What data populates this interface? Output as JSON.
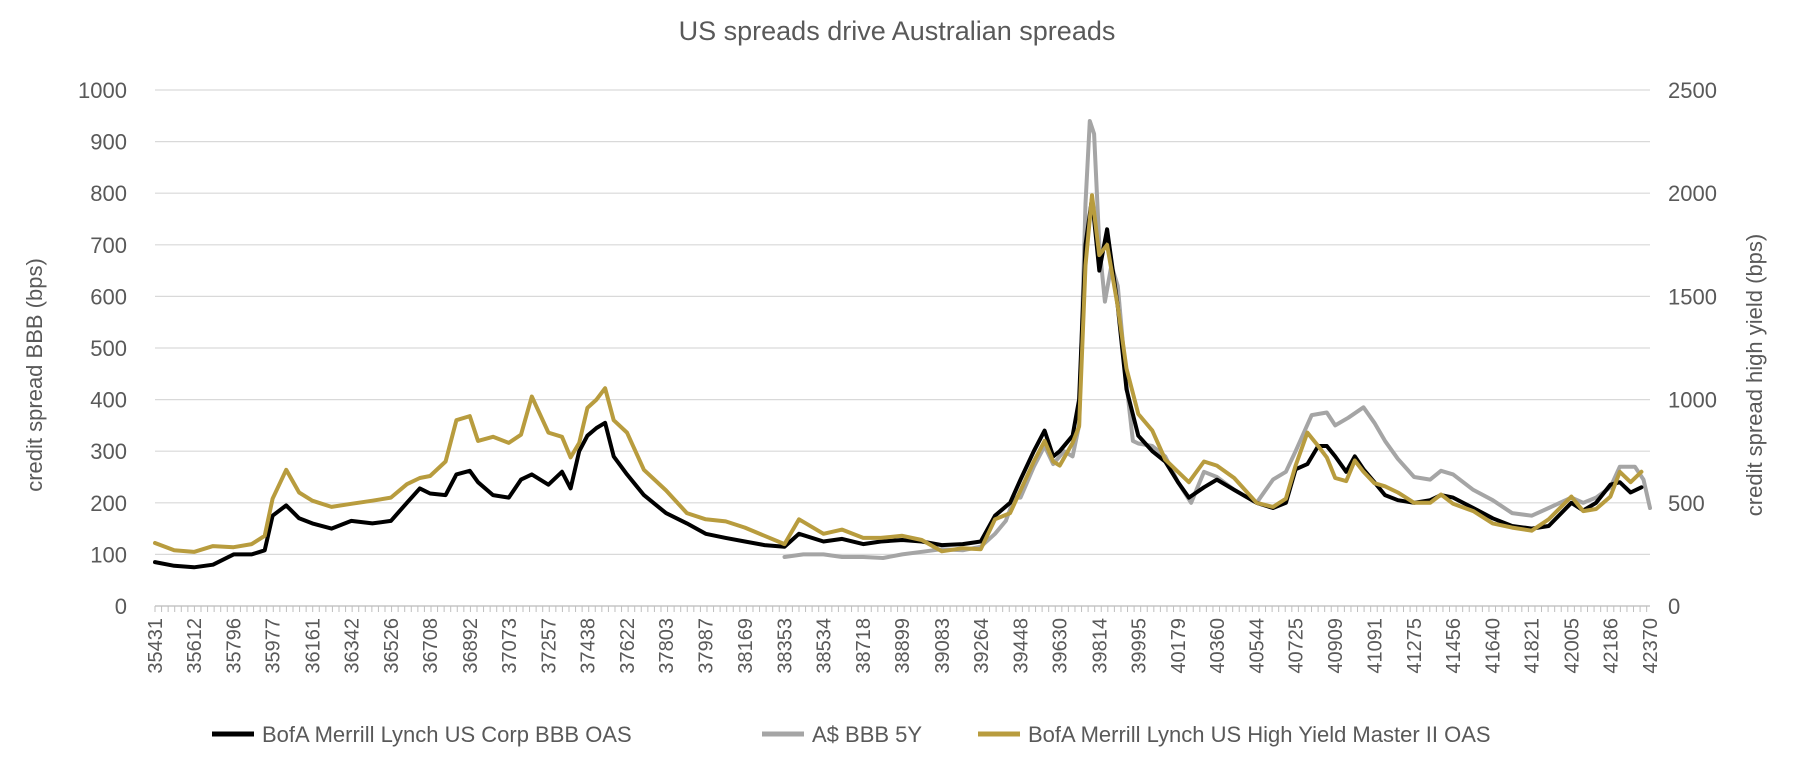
{
  "chart_data": {
    "type": "line",
    "title": "US spreads drive Australian spreads",
    "ylabel_left": "credit spread BBB (bps)",
    "ylabel_right": "credit spread high yield (bps)",
    "ylim_left": [
      0,
      1000
    ],
    "ylim_right": [
      0,
      2500
    ],
    "yticks_left": [
      "0",
      "100",
      "200",
      "300",
      "400",
      "500",
      "600",
      "700",
      "800",
      "900",
      "1000"
    ],
    "yticks_right": [
      "0",
      "500",
      "1000",
      "1500",
      "2000",
      "2500"
    ],
    "xlim": [
      35431,
      42370
    ],
    "xticks": [
      "35431",
      "35612",
      "35796",
      "35977",
      "36161",
      "36342",
      "36526",
      "36708",
      "36892",
      "37073",
      "37257",
      "37438",
      "37622",
      "37803",
      "37987",
      "38169",
      "38353",
      "38534",
      "38718",
      "38899",
      "39083",
      "39264",
      "39448",
      "39630",
      "39814",
      "39995",
      "40179",
      "40360",
      "40544",
      "40725",
      "40909",
      "41091",
      "41275",
      "41456",
      "41640",
      "41821",
      "42005",
      "42186",
      "42370"
    ],
    "grid": "horizontal",
    "legend_position": "bottom",
    "series": [
      {
        "name": "BofA Merrill Lynch US Corp BBB OAS",
        "color": "#000000",
        "axis": "left",
        "points": [
          [
            35431,
            85
          ],
          [
            35520,
            78
          ],
          [
            35612,
            75
          ],
          [
            35700,
            80
          ],
          [
            35796,
            100
          ],
          [
            35880,
            100
          ],
          [
            35940,
            108
          ],
          [
            35977,
            175
          ],
          [
            36040,
            195
          ],
          [
            36100,
            170
          ],
          [
            36161,
            160
          ],
          [
            36250,
            150
          ],
          [
            36342,
            165
          ],
          [
            36440,
            160
          ],
          [
            36526,
            165
          ],
          [
            36600,
            200
          ],
          [
            36660,
            228
          ],
          [
            36708,
            218
          ],
          [
            36780,
            215
          ],
          [
            36830,
            255
          ],
          [
            36892,
            262
          ],
          [
            36930,
            240
          ],
          [
            37000,
            215
          ],
          [
            37073,
            210
          ],
          [
            37130,
            245
          ],
          [
            37180,
            255
          ],
          [
            37257,
            235
          ],
          [
            37320,
            260
          ],
          [
            37360,
            228
          ],
          [
            37400,
            300
          ],
          [
            37438,
            330
          ],
          [
            37480,
            345
          ],
          [
            37520,
            355
          ],
          [
            37560,
            290
          ],
          [
            37622,
            255
          ],
          [
            37700,
            215
          ],
          [
            37803,
            180
          ],
          [
            37900,
            160
          ],
          [
            37987,
            140
          ],
          [
            38080,
            132
          ],
          [
            38169,
            125
          ],
          [
            38260,
            118
          ],
          [
            38353,
            115
          ],
          [
            38420,
            140
          ],
          [
            38534,
            125
          ],
          [
            38620,
            130
          ],
          [
            38718,
            120
          ],
          [
            38800,
            125
          ],
          [
            38899,
            128
          ],
          [
            38990,
            125
          ],
          [
            39083,
            118
          ],
          [
            39180,
            120
          ],
          [
            39264,
            125
          ],
          [
            39330,
            175
          ],
          [
            39400,
            200
          ],
          [
            39448,
            245
          ],
          [
            39510,
            300
          ],
          [
            39560,
            340
          ],
          [
            39600,
            290
          ],
          [
            39630,
            300
          ],
          [
            39690,
            330
          ],
          [
            39720,
            400
          ],
          [
            39750,
            700
          ],
          [
            39780,
            790
          ],
          [
            39814,
            650
          ],
          [
            39850,
            730
          ],
          [
            39900,
            580
          ],
          [
            39940,
            420
          ],
          [
            39995,
            330
          ],
          [
            40060,
            300
          ],
          [
            40120,
            280
          ],
          [
            40179,
            240
          ],
          [
            40230,
            210
          ],
          [
            40300,
            230
          ],
          [
            40360,
            245
          ],
          [
            40440,
            225
          ],
          [
            40544,
            200
          ],
          [
            40620,
            190
          ],
          [
            40680,
            200
          ],
          [
            40725,
            265
          ],
          [
            40780,
            275
          ],
          [
            40830,
            310
          ],
          [
            40870,
            310
          ],
          [
            40909,
            290
          ],
          [
            40960,
            260
          ],
          [
            41000,
            290
          ],
          [
            41040,
            265
          ],
          [
            41091,
            240
          ],
          [
            41140,
            215
          ],
          [
            41200,
            205
          ],
          [
            41275,
            200
          ],
          [
            41350,
            205
          ],
          [
            41400,
            215
          ],
          [
            41456,
            210
          ],
          [
            41550,
            190
          ],
          [
            41640,
            170
          ],
          [
            41730,
            155
          ],
          [
            41821,
            150
          ],
          [
            41900,
            155
          ],
          [
            42005,
            200
          ],
          [
            42060,
            185
          ],
          [
            42120,
            200
          ],
          [
            42186,
            235
          ],
          [
            42230,
            240
          ],
          [
            42280,
            220
          ],
          [
            42330,
            230
          ]
        ]
      },
      {
        "name": "A$ BBB 5Y",
        "color": "#a5a5a5",
        "axis": "left",
        "points": [
          [
            38353,
            95
          ],
          [
            38440,
            100
          ],
          [
            38534,
            100
          ],
          [
            38620,
            95
          ],
          [
            38718,
            95
          ],
          [
            38810,
            93
          ],
          [
            38899,
            100
          ],
          [
            38990,
            105
          ],
          [
            39083,
            110
          ],
          [
            39180,
            108
          ],
          [
            39264,
            115
          ],
          [
            39330,
            140
          ],
          [
            39380,
            165
          ],
          [
            39420,
            210
          ],
          [
            39448,
            210
          ],
          [
            39510,
            270
          ],
          [
            39560,
            310
          ],
          [
            39600,
            275
          ],
          [
            39650,
            300
          ],
          [
            39690,
            290
          ],
          [
            39720,
            350
          ],
          [
            39750,
            780
          ],
          [
            39770,
            940
          ],
          [
            39790,
            915
          ],
          [
            39814,
            700
          ],
          [
            39840,
            590
          ],
          [
            39870,
            660
          ],
          [
            39900,
            620
          ],
          [
            39940,
            430
          ],
          [
            39970,
            320
          ],
          [
            39995,
            315
          ],
          [
            40060,
            310
          ],
          [
            40120,
            290
          ],
          [
            40179,
            240
          ],
          [
            40240,
            200
          ],
          [
            40300,
            260
          ],
          [
            40360,
            250
          ],
          [
            40440,
            225
          ],
          [
            40544,
            200
          ],
          [
            40620,
            245
          ],
          [
            40680,
            260
          ],
          [
            40725,
            300
          ],
          [
            40800,
            370
          ],
          [
            40870,
            375
          ],
          [
            40909,
            350
          ],
          [
            40970,
            365
          ],
          [
            41040,
            385
          ],
          [
            41091,
            355
          ],
          [
            41140,
            320
          ],
          [
            41200,
            285
          ],
          [
            41275,
            250
          ],
          [
            41350,
            245
          ],
          [
            41400,
            262
          ],
          [
            41456,
            255
          ],
          [
            41550,
            225
          ],
          [
            41640,
            205
          ],
          [
            41730,
            180
          ],
          [
            41821,
            175
          ],
          [
            41900,
            190
          ],
          [
            42005,
            210
          ],
          [
            42060,
            200
          ],
          [
            42120,
            210
          ],
          [
            42186,
            230
          ],
          [
            42230,
            270
          ],
          [
            42300,
            270
          ],
          [
            42340,
            245
          ],
          [
            42370,
            190
          ]
        ]
      },
      {
        "name": "BofA Merrill Lynch US High Yield Master II OAS",
        "color": "#b89c3e",
        "axis": "right",
        "points": [
          [
            35431,
            305
          ],
          [
            35520,
            270
          ],
          [
            35612,
            262
          ],
          [
            35700,
            290
          ],
          [
            35796,
            285
          ],
          [
            35880,
            300
          ],
          [
            35940,
            340
          ],
          [
            35977,
            520
          ],
          [
            36040,
            660
          ],
          [
            36100,
            550
          ],
          [
            36161,
            510
          ],
          [
            36250,
            480
          ],
          [
            36342,
            495
          ],
          [
            36440,
            510
          ],
          [
            36526,
            525
          ],
          [
            36600,
            590
          ],
          [
            36660,
            620
          ],
          [
            36708,
            630
          ],
          [
            36780,
            700
          ],
          [
            36830,
            900
          ],
          [
            36892,
            920
          ],
          [
            36930,
            800
          ],
          [
            37000,
            820
          ],
          [
            37073,
            790
          ],
          [
            37130,
            830
          ],
          [
            37180,
            1015
          ],
          [
            37257,
            840
          ],
          [
            37320,
            820
          ],
          [
            37360,
            720
          ],
          [
            37400,
            790
          ],
          [
            37438,
            960
          ],
          [
            37480,
            1000
          ],
          [
            37520,
            1055
          ],
          [
            37560,
            900
          ],
          [
            37622,
            840
          ],
          [
            37700,
            660
          ],
          [
            37803,
            560
          ],
          [
            37900,
            450
          ],
          [
            37987,
            420
          ],
          [
            38080,
            410
          ],
          [
            38169,
            380
          ],
          [
            38260,
            340
          ],
          [
            38353,
            300
          ],
          [
            38420,
            420
          ],
          [
            38534,
            350
          ],
          [
            38620,
            370
          ],
          [
            38718,
            330
          ],
          [
            38800,
            330
          ],
          [
            38899,
            340
          ],
          [
            38990,
            320
          ],
          [
            39083,
            265
          ],
          [
            39180,
            280
          ],
          [
            39264,
            275
          ],
          [
            39330,
            420
          ],
          [
            39400,
            450
          ],
          [
            39448,
            560
          ],
          [
            39510,
            700
          ],
          [
            39560,
            800
          ],
          [
            39600,
            700
          ],
          [
            39630,
            680
          ],
          [
            39690,
            790
          ],
          [
            39720,
            870
          ],
          [
            39750,
            1650
          ],
          [
            39780,
            1990
          ],
          [
            39814,
            1700
          ],
          [
            39850,
            1750
          ],
          [
            39900,
            1450
          ],
          [
            39940,
            1150
          ],
          [
            39995,
            930
          ],
          [
            40060,
            850
          ],
          [
            40120,
            710
          ],
          [
            40179,
            650
          ],
          [
            40230,
            600
          ],
          [
            40300,
            700
          ],
          [
            40360,
            680
          ],
          [
            40440,
            620
          ],
          [
            40544,
            500
          ],
          [
            40620,
            480
          ],
          [
            40680,
            520
          ],
          [
            40725,
            680
          ],
          [
            40780,
            840
          ],
          [
            40830,
            775
          ],
          [
            40870,
            720
          ],
          [
            40909,
            620
          ],
          [
            40960,
            605
          ],
          [
            41000,
            705
          ],
          [
            41040,
            650
          ],
          [
            41091,
            595
          ],
          [
            41140,
            580
          ],
          [
            41200,
            550
          ],
          [
            41275,
            500
          ],
          [
            41350,
            500
          ],
          [
            41400,
            540
          ],
          [
            41456,
            495
          ],
          [
            41550,
            460
          ],
          [
            41640,
            400
          ],
          [
            41730,
            380
          ],
          [
            41821,
            365
          ],
          [
            41900,
            420
          ],
          [
            42005,
            530
          ],
          [
            42060,
            460
          ],
          [
            42120,
            470
          ],
          [
            42186,
            530
          ],
          [
            42230,
            650
          ],
          [
            42280,
            600
          ],
          [
            42330,
            650
          ]
        ]
      }
    ]
  }
}
